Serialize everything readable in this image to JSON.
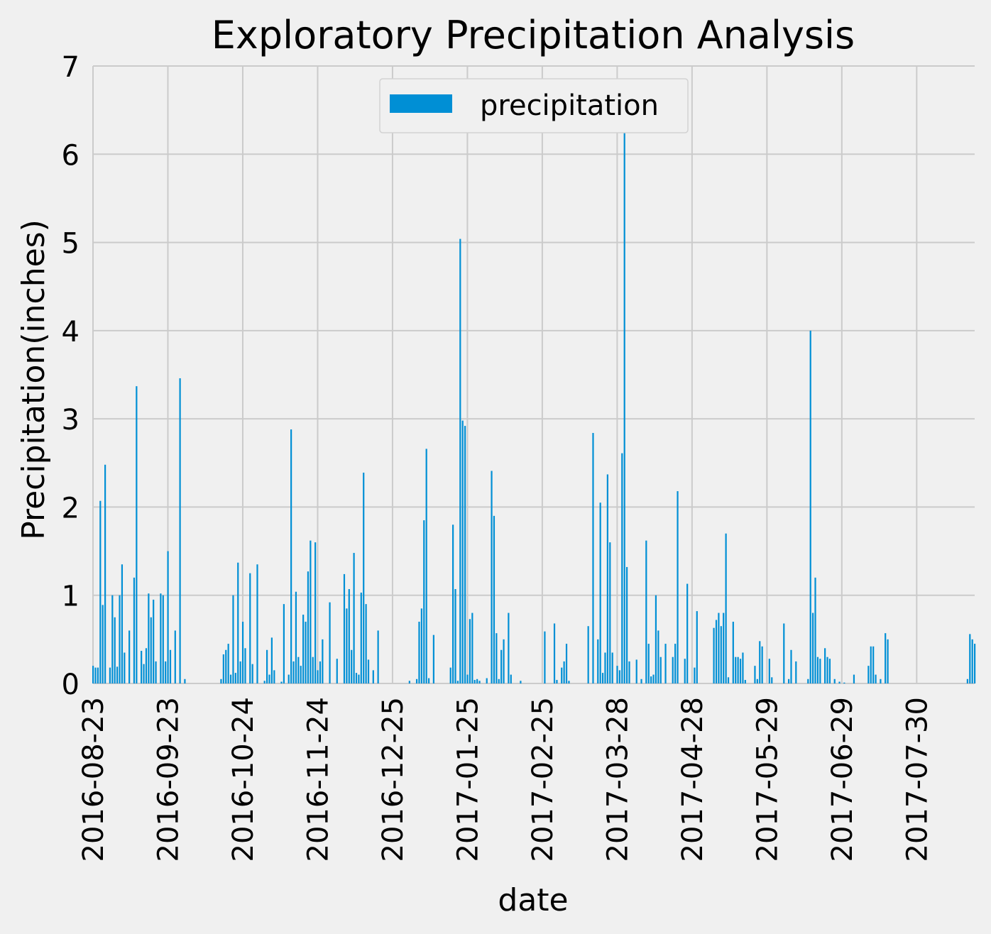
{
  "chart_data": {
    "type": "bar",
    "title": "Exploratory Precipitation Analysis",
    "xlabel": "date",
    "ylabel": "Precipitation(inches)",
    "ylim": [
      0,
      7
    ],
    "yticks": [
      0,
      1,
      2,
      3,
      4,
      5,
      6,
      7
    ],
    "x_range": [
      "2016-08-23",
      "2017-08-23"
    ],
    "xticks": [
      "2016-08-23",
      "2016-09-23",
      "2016-10-24",
      "2016-11-24",
      "2016-12-25",
      "2017-01-25",
      "2017-02-25",
      "2017-03-28",
      "2017-04-28",
      "2017-05-29",
      "2017-06-29",
      "2017-07-30"
    ],
    "grid": true,
    "legend": {
      "position": "top-center",
      "entries": [
        "precipitation"
      ]
    },
    "series": [
      {
        "name": "precipitation",
        "color": "#008fd5",
        "points": [
          [
            "2016-08-23",
            0.2
          ],
          [
            "2016-08-24",
            0.18
          ],
          [
            "2016-08-25",
            0.18
          ],
          [
            "2016-08-26",
            2.07
          ],
          [
            "2016-08-27",
            0.89
          ],
          [
            "2016-08-28",
            2.48
          ],
          [
            "2016-08-30",
            0.18
          ],
          [
            "2016-08-31",
            1.0
          ],
          [
            "2016-09-01",
            0.75
          ],
          [
            "2016-09-02",
            0.19
          ],
          [
            "2016-09-03",
            1.0
          ],
          [
            "2016-09-04",
            1.35
          ],
          [
            "2016-09-05",
            0.35
          ],
          [
            "2016-09-07",
            0.6
          ],
          [
            "2016-09-09",
            1.2
          ],
          [
            "2016-09-10",
            3.37
          ],
          [
            "2016-09-12",
            0.37
          ],
          [
            "2016-09-13",
            0.22
          ],
          [
            "2016-09-14",
            0.4
          ],
          [
            "2016-09-15",
            1.02
          ],
          [
            "2016-09-16",
            0.75
          ],
          [
            "2016-09-17",
            0.95
          ],
          [
            "2016-09-18",
            0.25
          ],
          [
            "2016-09-20",
            1.02
          ],
          [
            "2016-09-21",
            1.0
          ],
          [
            "2016-09-22",
            0.25
          ],
          [
            "2016-09-23",
            1.5
          ],
          [
            "2016-09-24",
            0.38
          ],
          [
            "2016-09-26",
            0.6
          ],
          [
            "2016-09-28",
            3.46
          ],
          [
            "2016-09-30",
            0.05
          ],
          [
            "2016-10-15",
            0.05
          ],
          [
            "2016-10-16",
            0.33
          ],
          [
            "2016-10-17",
            0.38
          ],
          [
            "2016-10-18",
            0.45
          ],
          [
            "2016-10-19",
            0.1
          ],
          [
            "2016-10-20",
            1.0
          ],
          [
            "2016-10-21",
            0.12
          ],
          [
            "2016-10-22",
            1.37
          ],
          [
            "2016-10-23",
            0.25
          ],
          [
            "2016-10-24",
            0.7
          ],
          [
            "2016-10-25",
            0.4
          ],
          [
            "2016-10-27",
            1.25
          ],
          [
            "2016-10-28",
            0.22
          ],
          [
            "2016-10-30",
            1.35
          ],
          [
            "2016-11-02",
            0.03
          ],
          [
            "2016-11-03",
            0.38
          ],
          [
            "2016-11-04",
            0.1
          ],
          [
            "2016-11-05",
            0.52
          ],
          [
            "2016-11-06",
            0.15
          ],
          [
            "2016-11-09",
            0.02
          ],
          [
            "2016-11-10",
            0.9
          ],
          [
            "2016-11-12",
            0.1
          ],
          [
            "2016-11-13",
            2.88
          ],
          [
            "2016-11-14",
            0.25
          ],
          [
            "2016-11-15",
            1.04
          ],
          [
            "2016-11-16",
            0.3
          ],
          [
            "2016-11-17",
            0.2
          ],
          [
            "2016-11-18",
            0.78
          ],
          [
            "2016-11-19",
            0.7
          ],
          [
            "2016-11-20",
            1.27
          ],
          [
            "2016-11-21",
            1.62
          ],
          [
            "2016-11-22",
            0.3
          ],
          [
            "2016-11-23",
            1.6
          ],
          [
            "2016-11-24",
            0.15
          ],
          [
            "2016-11-25",
            0.25
          ],
          [
            "2016-11-26",
            0.5
          ],
          [
            "2016-11-29",
            0.92
          ],
          [
            "2016-12-02",
            0.28
          ],
          [
            "2016-12-05",
            1.24
          ],
          [
            "2016-12-06",
            0.85
          ],
          [
            "2016-12-07",
            1.07
          ],
          [
            "2016-12-08",
            0.38
          ],
          [
            "2016-12-09",
            1.48
          ],
          [
            "2016-12-10",
            0.12
          ],
          [
            "2016-12-11",
            0.1
          ],
          [
            "2016-12-12",
            1.03
          ],
          [
            "2016-12-13",
            2.39
          ],
          [
            "2016-12-14",
            0.9
          ],
          [
            "2016-12-15",
            0.27
          ],
          [
            "2016-12-17",
            0.15
          ],
          [
            "2016-12-19",
            0.6
          ],
          [
            "2017-01-01",
            0.03
          ],
          [
            "2017-01-04",
            0.05
          ],
          [
            "2017-01-05",
            0.7
          ],
          [
            "2017-01-06",
            0.85
          ],
          [
            "2017-01-07",
            1.85
          ],
          [
            "2017-01-08",
            2.66
          ],
          [
            "2017-01-09",
            0.06
          ],
          [
            "2017-01-11",
            0.55
          ],
          [
            "2017-01-18",
            0.18
          ],
          [
            "2017-01-19",
            1.8
          ],
          [
            "2017-01-20",
            1.07
          ],
          [
            "2017-01-21",
            0.03
          ],
          [
            "2017-01-22",
            5.04
          ],
          [
            "2017-01-23",
            2.98
          ],
          [
            "2017-01-24",
            2.92
          ],
          [
            "2017-01-25",
            0.1
          ],
          [
            "2017-01-26",
            0.73
          ],
          [
            "2017-01-27",
            0.8
          ],
          [
            "2017-01-28",
            0.04
          ],
          [
            "2017-01-29",
            0.05
          ],
          [
            "2017-01-30",
            0.03
          ],
          [
            "2017-02-02",
            0.06
          ],
          [
            "2017-02-04",
            2.41
          ],
          [
            "2017-02-05",
            1.9
          ],
          [
            "2017-02-06",
            0.57
          ],
          [
            "2017-02-07",
            0.05
          ],
          [
            "2017-02-08",
            0.38
          ],
          [
            "2017-02-09",
            0.5
          ],
          [
            "2017-02-11",
            0.8
          ],
          [
            "2017-02-12",
            0.1
          ],
          [
            "2017-02-16",
            0.03
          ],
          [
            "2017-02-26",
            0.59
          ],
          [
            "2017-03-02",
            0.68
          ],
          [
            "2017-03-03",
            0.04
          ],
          [
            "2017-03-05",
            0.18
          ],
          [
            "2017-03-06",
            0.25
          ],
          [
            "2017-03-07",
            0.45
          ],
          [
            "2017-03-08",
            0.03
          ],
          [
            "2017-03-16",
            0.65
          ],
          [
            "2017-03-18",
            2.84
          ],
          [
            "2017-03-20",
            0.5
          ],
          [
            "2017-03-21",
            2.05
          ],
          [
            "2017-03-22",
            0.12
          ],
          [
            "2017-03-23",
            0.35
          ],
          [
            "2017-03-24",
            2.37
          ],
          [
            "2017-03-25",
            1.6
          ],
          [
            "2017-03-26",
            0.35
          ],
          [
            "2017-03-28",
            0.2
          ],
          [
            "2017-03-29",
            0.15
          ],
          [
            "2017-03-30",
            2.61
          ],
          [
            "2017-03-31",
            6.25
          ],
          [
            "2017-04-01",
            1.32
          ],
          [
            "2017-04-02",
            0.25
          ],
          [
            "2017-04-05",
            0.27
          ],
          [
            "2017-04-07",
            0.05
          ],
          [
            "2017-04-09",
            1.62
          ],
          [
            "2017-04-10",
            0.45
          ],
          [
            "2017-04-11",
            0.08
          ],
          [
            "2017-04-12",
            0.1
          ],
          [
            "2017-04-13",
            1.0
          ],
          [
            "2017-04-14",
            0.6
          ],
          [
            "2017-04-15",
            0.3
          ],
          [
            "2017-04-17",
            0.45
          ],
          [
            "2017-04-20",
            0.3
          ],
          [
            "2017-04-21",
            0.45
          ],
          [
            "2017-04-22",
            2.18
          ],
          [
            "2017-04-25",
            0.28
          ],
          [
            "2017-04-26",
            1.13
          ],
          [
            "2017-04-29",
            0.18
          ],
          [
            "2017-04-30",
            0.82
          ],
          [
            "2017-05-07",
            0.63
          ],
          [
            "2017-05-08",
            0.72
          ],
          [
            "2017-05-09",
            0.8
          ],
          [
            "2017-05-10",
            0.65
          ],
          [
            "2017-05-11",
            0.8
          ],
          [
            "2017-05-12",
            1.7
          ],
          [
            "2017-05-13",
            0.07
          ],
          [
            "2017-05-15",
            0.7
          ],
          [
            "2017-05-16",
            0.3
          ],
          [
            "2017-05-17",
            0.3
          ],
          [
            "2017-05-18",
            0.28
          ],
          [
            "2017-05-19",
            0.35
          ],
          [
            "2017-05-20",
            0.04
          ],
          [
            "2017-05-24",
            0.2
          ],
          [
            "2017-05-25",
            0.05
          ],
          [
            "2017-05-26",
            0.48
          ],
          [
            "2017-05-27",
            0.42
          ],
          [
            "2017-05-30",
            0.28
          ],
          [
            "2017-05-31",
            0.07
          ],
          [
            "2017-06-05",
            0.68
          ],
          [
            "2017-06-07",
            0.05
          ],
          [
            "2017-06-08",
            0.38
          ],
          [
            "2017-06-10",
            0.25
          ],
          [
            "2017-06-15",
            0.05
          ],
          [
            "2017-06-16",
            4.0
          ],
          [
            "2017-06-17",
            0.8
          ],
          [
            "2017-06-18",
            1.2
          ],
          [
            "2017-06-19",
            0.3
          ],
          [
            "2017-06-20",
            0.28
          ],
          [
            "2017-06-22",
            0.4
          ],
          [
            "2017-06-23",
            0.3
          ],
          [
            "2017-06-24",
            0.28
          ],
          [
            "2017-06-26",
            0.05
          ],
          [
            "2017-06-28",
            0.02
          ],
          [
            "2017-06-30",
            0.01
          ],
          [
            "2017-07-04",
            0.1
          ],
          [
            "2017-07-10",
            0.2
          ],
          [
            "2017-07-11",
            0.42
          ],
          [
            "2017-07-12",
            0.42
          ],
          [
            "2017-07-13",
            0.1
          ],
          [
            "2017-07-15",
            0.05
          ],
          [
            "2017-07-17",
            0.57
          ],
          [
            "2017-07-18",
            0.5
          ],
          [
            "2017-08-20",
            0.05
          ],
          [
            "2017-08-21",
            0.56
          ],
          [
            "2017-08-22",
            0.5
          ],
          [
            "2017-08-23",
            0.45
          ]
        ]
      }
    ]
  }
}
